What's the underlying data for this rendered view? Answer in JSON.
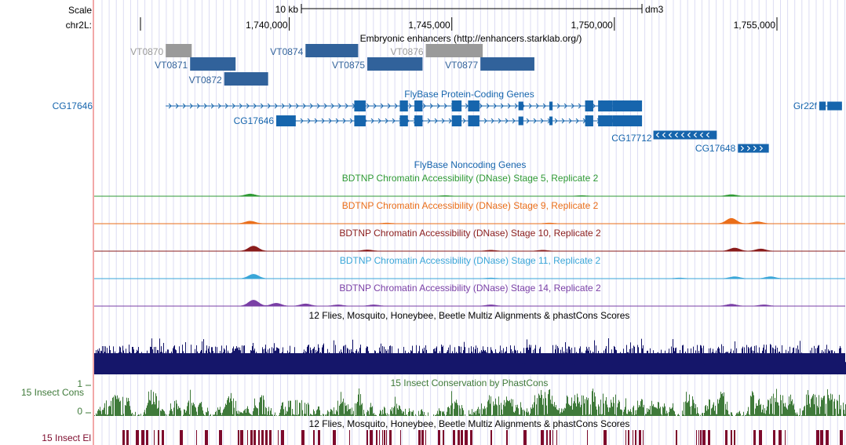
{
  "browser": {
    "scale_label": "Scale",
    "scale_value": "10 kb",
    "assembly": "dm3",
    "chrom_label": "chr2L:",
    "ruler_ticks": [
      {
        "pos": 1740000,
        "label": "1,740,000"
      },
      {
        "pos": 1745000,
        "label": "1,745,000"
      },
      {
        "pos": 1750000,
        "label": "1,750,000"
      },
      {
        "pos": 1755000,
        "label": "1,755,000"
      }
    ]
  },
  "colors": {
    "enhancer": "#31629b",
    "enhancer_muted": "#9a9a9a",
    "gene": "#1665ad",
    "stage5": "#2f9a35",
    "stage9": "#ea6e1a",
    "stage10": "#8a1c1c",
    "stage11": "#3aa6d8",
    "stage14": "#7a3fa6",
    "multiz": "#15166a",
    "phastcons": "#3f7a3a",
    "elements": "#7d0a2c",
    "guide": "#dcdcf3",
    "redline": "#f2a8a8"
  },
  "tracks": {
    "enhancers": {
      "title": "Embryonic enhancers (http://enhancers.starklab.org/)",
      "items": [
        {
          "name": "VT0870",
          "start": 1736200,
          "end": 1737000,
          "row": 0,
          "muted": true
        },
        {
          "name": "VT0871",
          "start": 1736950,
          "end": 1738350,
          "row": 1,
          "muted": false
        },
        {
          "name": "VT0872",
          "start": 1738000,
          "end": 1739350,
          "row": 2,
          "muted": false
        },
        {
          "name": "VT0874",
          "start": 1740500,
          "end": 1742120,
          "row": 0,
          "muted": false
        },
        {
          "name": "VT0875",
          "start": 1742400,
          "end": 1744100,
          "row": 1,
          "muted": false
        },
        {
          "name": "VT0876",
          "start": 1744200,
          "end": 1745950,
          "row": 0,
          "muted": true
        },
        {
          "name": "VT0877",
          "start": 1745880,
          "end": 1747540,
          "row": 1,
          "muted": false
        }
      ]
    },
    "genes": {
      "title": "FlyBase Protein-Coding Genes",
      "transcripts": [
        {
          "name": "CG17646",
          "start": 1736200,
          "end": 1750850,
          "row": 0,
          "strand": "+",
          "label_side": "left",
          "exons": [
            [
              1742000,
              1742350
            ],
            [
              1743400,
              1743650
            ],
            [
              1743850,
              1744100
            ],
            [
              1745000,
              1745300
            ],
            [
              1745500,
              1745850
            ],
            [
              1747050,
              1747200
            ],
            [
              1748000,
              1748100
            ],
            [
              1749100,
              1749350
            ],
            [
              1749500,
              1749950
            ],
            [
              1749950,
              1750850
            ]
          ]
        },
        {
          "name": "CG17646",
          "start": 1739600,
          "end": 1750850,
          "row": 1,
          "strand": "+",
          "label_side": "left",
          "exons": [
            [
              1739600,
              1740200
            ],
            [
              1742000,
              1742350
            ],
            [
              1743400,
              1743650
            ],
            [
              1743850,
              1744100
            ],
            [
              1745000,
              1745300
            ],
            [
              1745500,
              1745850
            ],
            [
              1747050,
              1747200
            ],
            [
              1748000,
              1748100
            ],
            [
              1749100,
              1749350
            ],
            [
              1749500,
              1749950
            ],
            [
              1749950,
              1750850
            ]
          ]
        },
        {
          "name": "CG17712",
          "start": 1751200,
          "end": 1753150,
          "row": 2,
          "strand": "-",
          "label_side": "below",
          "exons": [
            [
              1751200,
              1753150
            ]
          ]
        },
        {
          "name": "CG17648",
          "start": 1753800,
          "end": 1754750,
          "row": 3,
          "strand": "+",
          "label_side": "left",
          "exons": [
            [
              1753800,
              1754750
            ]
          ]
        },
        {
          "name": "Gr22f",
          "start": 1756300,
          "end": 1757000,
          "row": 0,
          "strand": "+",
          "label_side": "left",
          "exons": [
            [
              1756300,
              1756500
            ],
            [
              1756550,
              1757000
            ]
          ]
        }
      ]
    },
    "noncoding": {
      "title": "FlyBase Noncoding Genes"
    },
    "dnase": [
      {
        "title": "BDTNP Chromatin Accessibility (DNase) Stage 5, Replicate 2",
        "color_key": "stage5",
        "peaks": [
          [
            1738800,
            0.35
          ],
          [
            1753600,
            0.25
          ],
          [
            1744800,
            0.1
          ],
          [
            1749000,
            0.1
          ]
        ]
      },
      {
        "title": "BDTNP Chromatin Accessibility (DNase) Stage 9, Replicate 2",
        "color_key": "stage9",
        "peaks": [
          [
            1738800,
            0.4
          ],
          [
            1753600,
            0.85
          ],
          [
            1754400,
            0.3
          ],
          [
            1743000,
            0.1
          ],
          [
            1748000,
            0.1
          ]
        ]
      },
      {
        "title": "BDTNP Chromatin Accessibility (DNase) Stage 10, Replicate 2",
        "color_key": "stage10",
        "peaks": [
          [
            1738900,
            0.8
          ],
          [
            1753700,
            0.5
          ],
          [
            1754500,
            0.35
          ],
          [
            1742400,
            0.2
          ],
          [
            1746200,
            0.15
          ],
          [
            1747800,
            0.15
          ]
        ]
      },
      {
        "title": "BDTNP Chromatin Accessibility (DNase) Stage 11, Replicate 2",
        "color_key": "stage11",
        "peaks": [
          [
            1738900,
            0.7
          ],
          [
            1753700,
            0.3
          ],
          [
            1754800,
            0.3
          ],
          [
            1746200,
            0.1
          ],
          [
            1752000,
            0.1
          ]
        ]
      },
      {
        "title": "BDTNP Chromatin Accessibility (DNase) Stage 14, Replicate 2",
        "color_key": "stage14",
        "peaks": [
          [
            1738900,
            0.95
          ],
          [
            1739600,
            0.45
          ],
          [
            1740500,
            0.35
          ],
          [
            1741500,
            0.2
          ],
          [
            1742600,
            0.2
          ],
          [
            1746200,
            0.2
          ],
          [
            1753600,
            0.3
          ],
          [
            1754600,
            0.2
          ]
        ]
      }
    ],
    "multiz": {
      "title": "12 Flies, Mosquito, Honeybee, Beetle Multiz Alignments & phastCons Scores"
    },
    "phastcons": {
      "title": "15 Insect Conservation by PhastCons",
      "side_label": "15 Insect Cons",
      "max_label": "1",
      "min_label": "0"
    },
    "elements": {
      "title": "12 Flies, Mosquito, Honeybee, Beetle Multiz Alignments & phastCons Scores",
      "side_label": "15 Insect El"
    }
  }
}
